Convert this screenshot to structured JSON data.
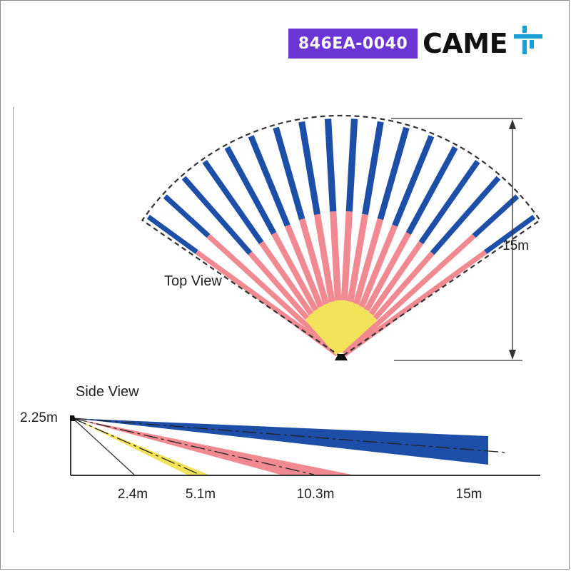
{
  "header": {
    "product_code": "846EA-0040",
    "brand": "CAME",
    "logo_icon": "came-t-logo-icon",
    "badge_color": "#6b35d6",
    "logo_color": "#1aa0d8"
  },
  "top_view": {
    "label": "Top View",
    "range_label": "15m",
    "range_m": 15,
    "beam_count": 18,
    "zones": [
      {
        "name": "far",
        "color": "#1d4fa8"
      },
      {
        "name": "mid",
        "color": "#f08a90"
      },
      {
        "name": "near",
        "color": "#f2e259"
      }
    ]
  },
  "side_view": {
    "label": "Side View",
    "height_label": "2.25m",
    "height_m": 2.25,
    "distances": [
      {
        "label": "2.4m",
        "value": 2.4
      },
      {
        "label": "5.1m",
        "value": 5.1
      },
      {
        "label": "10.3m",
        "value": 10.3
      },
      {
        "label": "15m",
        "value": 15
      }
    ],
    "beam_colors": {
      "near": "#f2e259",
      "mid": "#f08a90",
      "far": "#1d4fa8"
    }
  }
}
